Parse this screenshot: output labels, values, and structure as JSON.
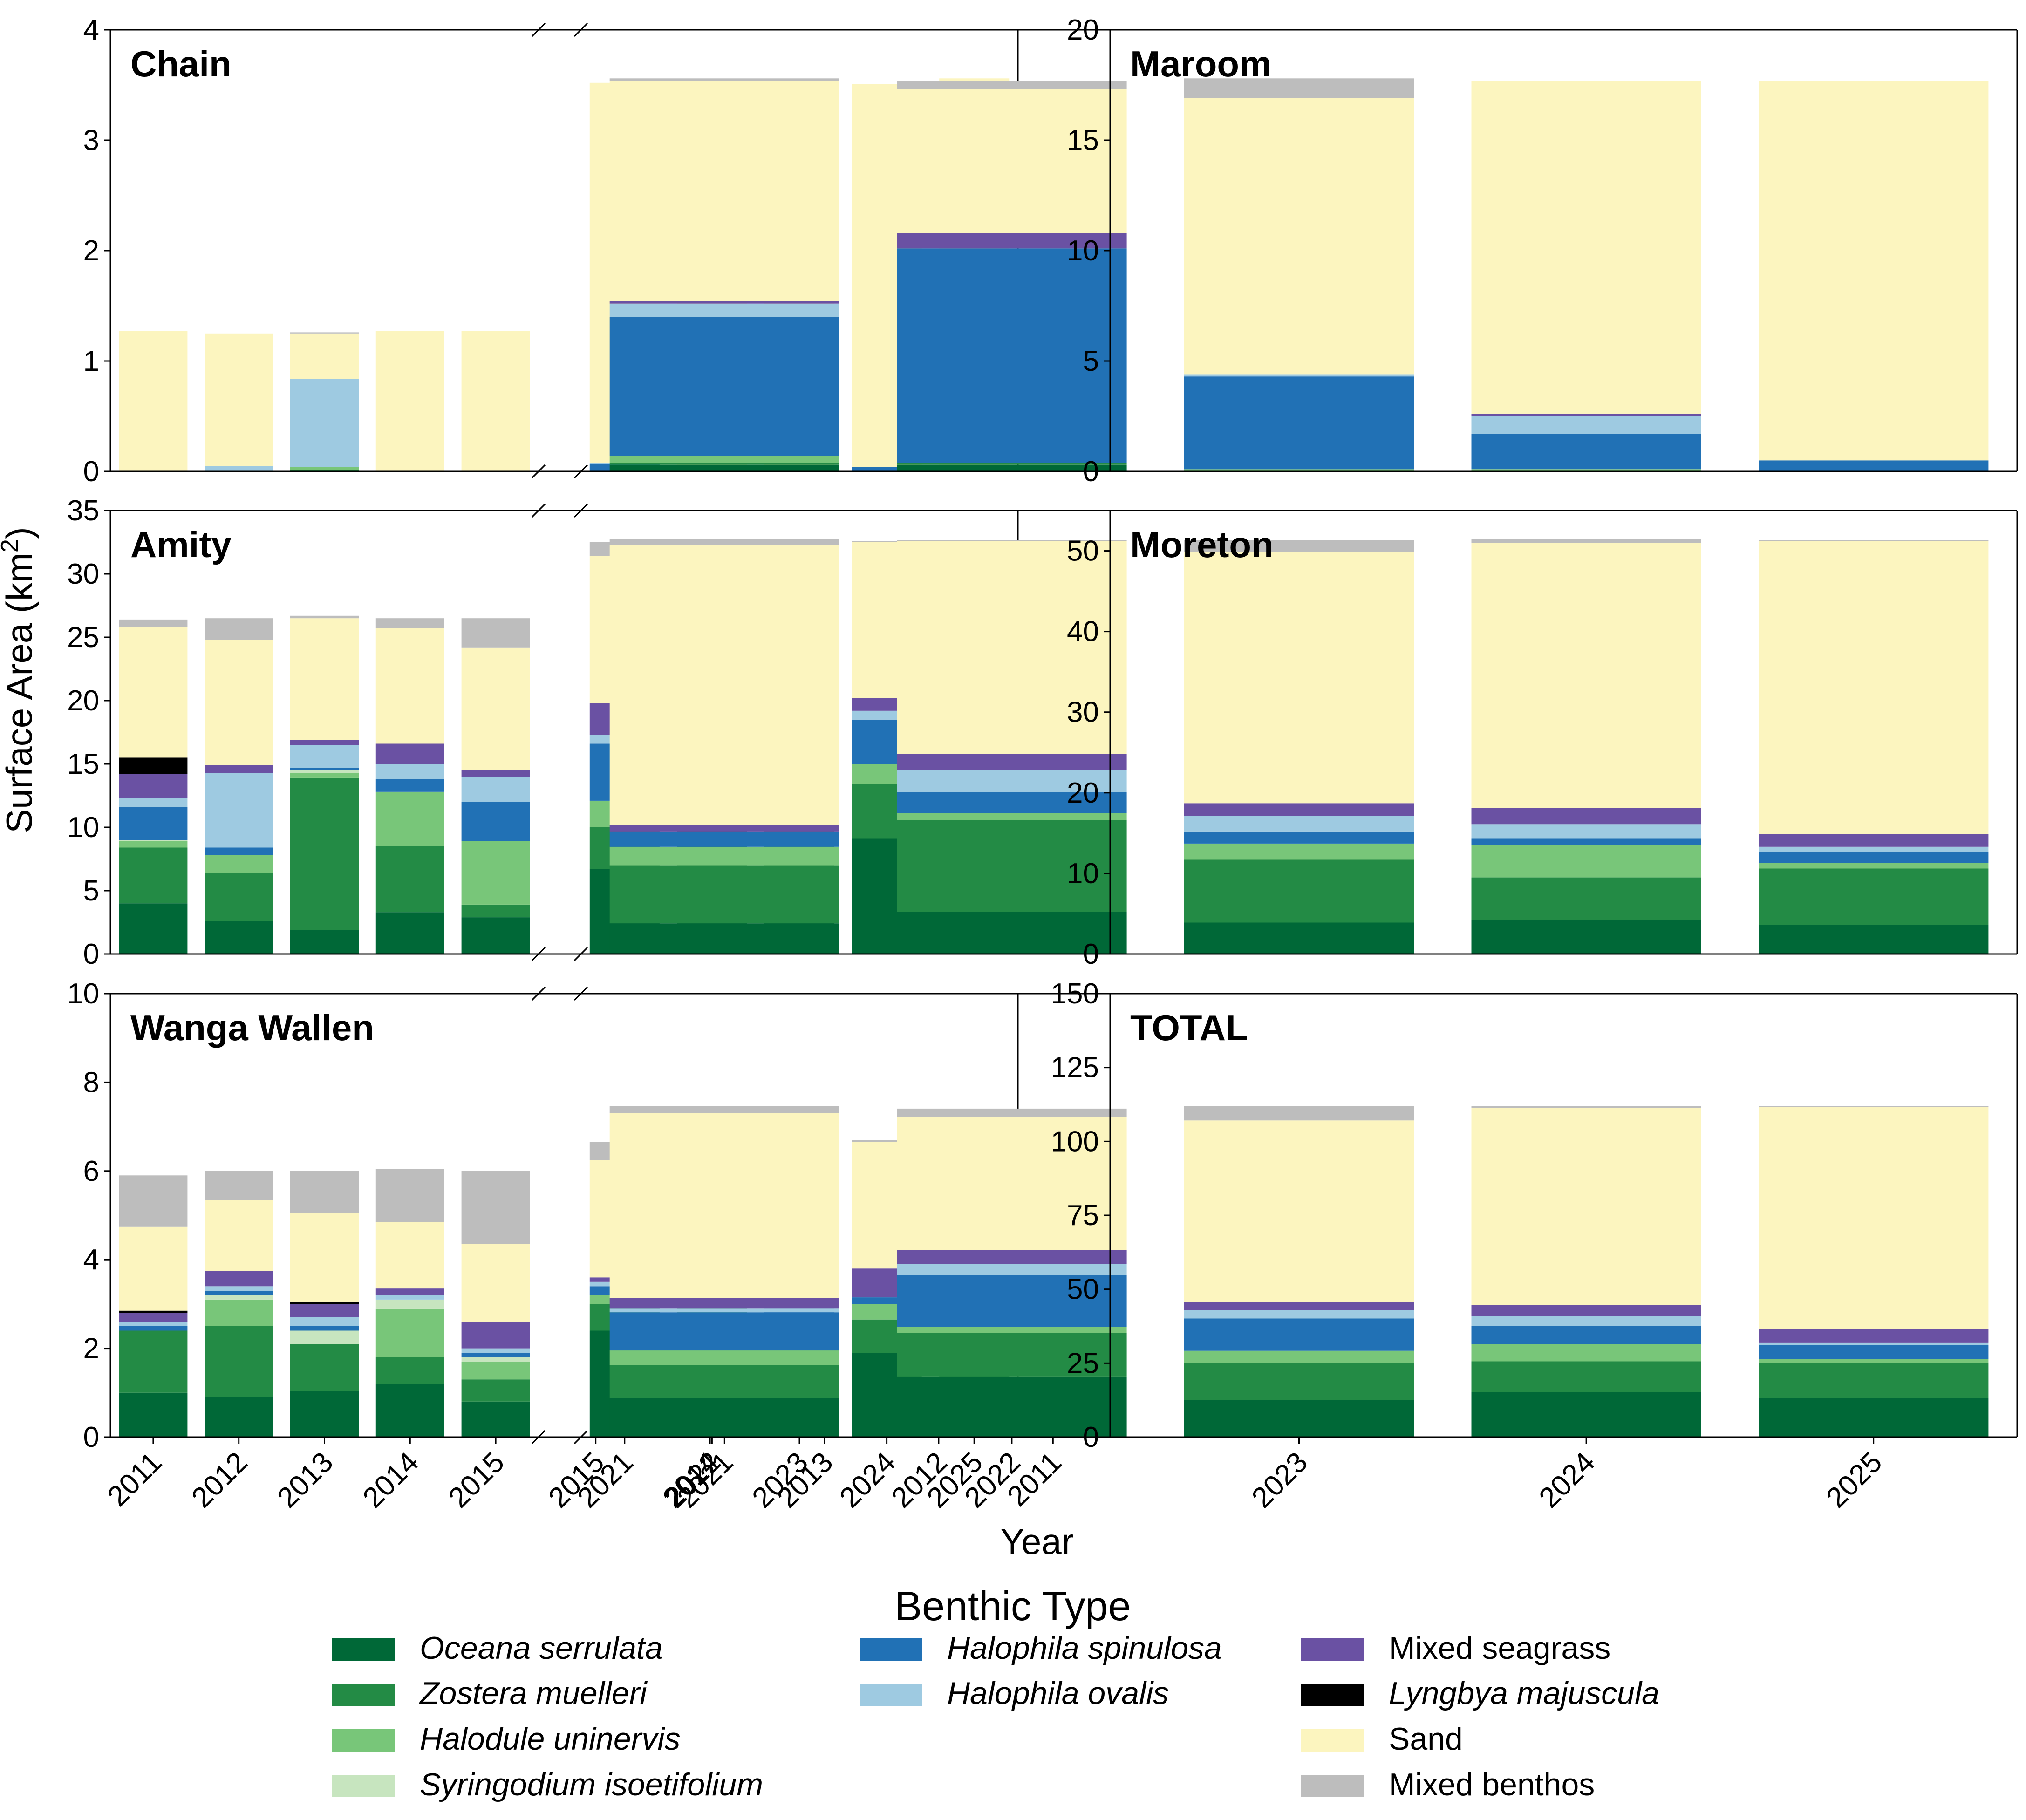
{
  "chart_data": {
    "type": "bar",
    "stacked": true,
    "xlabel": "Year",
    "ylabel": "Surface Area (km",
    "ylabel_superscript": "2",
    "ylabel_suffix": ")",
    "axis_break": true,
    "legend": {
      "title": "Benthic Type",
      "placement": "bottom-center"
    },
    "categories_left": [
      "2011",
      "2012",
      "2013",
      "2014",
      "2015"
    ],
    "categories_right": [
      "2021",
      "2022",
      "2023",
      "2024",
      "2025"
    ],
    "benthic_types": [
      {
        "name": "Oceana serrulata",
        "color": "#006837",
        "italic": true
      },
      {
        "name": "Zostera muelleri",
        "color": "#238b45",
        "italic": true
      },
      {
        "name": "Halodule uninervis",
        "color": "#78c679",
        "italic": true
      },
      {
        "name": "Syringodium isoetifolium",
        "color": "#c7e5bf",
        "italic": true
      },
      {
        "name": "Halophila spinulosa",
        "color": "#2171b5",
        "italic": true
      },
      {
        "name": "Halophila ovalis",
        "color": "#9ecae1",
        "italic": true
      },
      {
        "name": "Mixed seagrass",
        "color": "#6a51a3",
        "italic": false
      },
      {
        "name": "Lyngbya majuscula",
        "color": "#000000",
        "italic": true
      },
      {
        "name": "Sand",
        "color": "#fcf5bf",
        "italic": false
      },
      {
        "name": "Mixed benthos",
        "color": "#bdbdbd",
        "italic": false
      }
    ],
    "panels": [
      {
        "title": "Chain",
        "ylim": [
          0,
          4
        ],
        "yticks": [
          "0",
          "1",
          "2",
          "3",
          "4"
        ],
        "show_xticks": false,
        "values": [
          [
            0,
            0,
            0,
            0,
            0,
            0,
            0,
            0,
            1.27,
            0
          ],
          [
            0,
            0,
            0,
            0,
            0,
            0.05,
            0,
            0,
            1.2,
            0
          ],
          [
            0,
            0.01,
            0.03,
            0,
            0,
            0.8,
            0,
            0,
            0.41,
            0.01
          ],
          [
            0,
            0,
            0,
            0,
            0,
            0,
            0,
            0,
            1.27,
            0
          ],
          [
            0,
            0,
            0,
            0,
            0,
            0,
            0,
            0,
            1.27,
            0
          ],
          [
            0,
            0,
            0,
            0,
            0.07,
            0.01,
            0,
            0,
            3.44,
            0
          ],
          [
            0,
            0,
            0,
            0,
            0.02,
            0.03,
            0,
            0,
            3.48,
            0
          ],
          [
            0,
            0,
            0,
            0,
            0.04,
            0,
            0,
            0,
            3.45,
            0.06
          ],
          [
            0,
            0,
            0,
            0,
            0.04,
            0,
            0,
            0,
            3.47,
            0
          ],
          [
            0,
            0,
            0,
            0,
            0,
            0,
            0,
            0,
            3.56,
            0
          ]
        ]
      },
      {
        "title": "Maroom",
        "ylim": [
          0,
          20
        ],
        "yticks": [
          "0",
          "5",
          "10",
          "15",
          "20"
        ],
        "show_xticks": false,
        "values": [
          [
            0,
            0.6,
            0,
            0,
            2.8,
            1.0,
            0.2,
            0,
            3.9,
            1.0
          ],
          [
            0.5,
            0.2,
            0.1,
            0,
            2.9,
            5.0,
            0.05,
            0,
            0.55,
            0.3
          ],
          [
            1.0,
            4.3,
            0.1,
            0,
            0.4,
            1.0,
            0.05,
            0,
            0.65,
            2.0
          ],
          [
            0,
            0.9,
            0.3,
            0,
            3.4,
            3.7,
            0.5,
            0,
            0.6,
            0.1
          ],
          [
            0.3,
            0,
            1.5,
            0,
            2.8,
            0.1,
            0.2,
            0,
            0.8,
            3.8
          ],
          [
            0.3,
            0.1,
            0.3,
            0,
            6.3,
            0.6,
            0.1,
            0,
            10.0,
            0.1
          ],
          [
            0.3,
            0.1,
            0,
            0,
            9.7,
            0,
            0.7,
            0,
            6.5,
            0.4
          ],
          [
            0,
            0,
            0.1,
            0,
            4.2,
            0.1,
            0,
            0,
            12.5,
            0.9
          ],
          [
            0,
            0,
            0.1,
            0,
            1.6,
            0.8,
            0.1,
            0,
            15.1,
            0
          ],
          [
            0,
            0,
            0,
            0,
            0.5,
            0,
            0,
            0,
            17.2,
            0
          ]
        ]
      },
      {
        "title": "Amity",
        "ylim": [
          0,
          35
        ],
        "yticks": [
          "0",
          "5",
          "10",
          "15",
          "20",
          "25",
          "30",
          "35"
        ],
        "show_xticks": false,
        "values": [
          [
            4.0,
            4.4,
            0.5,
            0.1,
            2.6,
            0.7,
            1.9,
            1.3,
            10.3,
            0.6
          ],
          [
            2.6,
            3.8,
            1.4,
            0,
            0.6,
            5.9,
            0.6,
            0,
            9.9,
            1.7
          ],
          [
            1.9,
            12.0,
            0.4,
            0.2,
            0.2,
            1.8,
            0.4,
            0,
            9.6,
            0.2
          ],
          [
            3.3,
            5.2,
            4.3,
            0,
            1.0,
            1.2,
            1.6,
            0,
            9.1,
            0.8
          ],
          [
            2.9,
            1.0,
            5.0,
            0,
            3.1,
            2.0,
            0.5,
            0,
            9.7,
            2.3
          ],
          [
            6.7,
            3.3,
            2.1,
            0,
            4.5,
            0.7,
            2.5,
            0,
            11.6,
            1.1
          ],
          [
            13.0,
            2.2,
            0.9,
            0,
            5.3,
            0.9,
            0.9,
            0,
            7.0,
            2.3
          ],
          [
            6.8,
            4.0,
            1.9,
            0,
            4.9,
            0.9,
            0.9,
            0,
            11.1,
            1.9
          ],
          [
            9.1,
            4.3,
            1.6,
            0,
            3.5,
            0.7,
            1.0,
            0,
            12.3,
            0.1
          ],
          [
            7.9,
            3.7,
            0.5,
            0,
            2.6,
            0.1,
            2.6,
            0,
            15.0,
            0.2
          ]
        ]
      },
      {
        "title": "Moreton",
        "ylim": [
          0,
          55
        ],
        "yticks": [
          "0",
          "10",
          "20",
          "30",
          "40",
          "50"
        ],
        "show_xticks": false,
        "values": [
          [
            1.5,
            9.6,
            0.6,
            0.5,
            2.1,
            4.0,
            1.0,
            0,
            22.1,
            1.4
          ],
          [
            0,
            10.4,
            4.9,
            3.2,
            0,
            1.1,
            1.7,
            0,
            21.4,
            0
          ],
          [
            0.9,
            8.9,
            0.8,
            2.3,
            1.4,
            14.0,
            0.5,
            0.2,
            12.2,
            1.6
          ],
          [
            1.3,
            5.9,
            12.1,
            0.2,
            0.6,
            1.3,
            2.6,
            0,
            15.9,
            2.5
          ],
          [
            0.3,
            9.9,
            8.0,
            0.1,
            3.6,
            5.2,
            0.8,
            0,
            14.0,
            1.0
          ],
          [
            3.8,
            7.2,
            2.3,
            0,
            1.9,
            0,
            0.8,
            0,
            34.7,
            0.8
          ],
          [
            5.2,
            11.4,
            0.9,
            0,
            2.6,
            2.7,
            2.0,
            0,
            26.4,
            0.1
          ],
          [
            3.9,
            7.8,
            2.0,
            0,
            1.5,
            1.9,
            1.6,
            0,
            31.1,
            1.5
          ],
          [
            4.2,
            5.3,
            4.0,
            0,
            0.8,
            1.8,
            2.0,
            0,
            32.9,
            0.5
          ],
          [
            3.6,
            7.0,
            0.7,
            0,
            1.4,
            0.6,
            1.6,
            0,
            36.3,
            0.1
          ]
        ]
      },
      {
        "title": "Wanga Wallen",
        "ylim": [
          0,
          10
        ],
        "yticks": [
          "0",
          "2",
          "4",
          "6",
          "8",
          "10"
        ],
        "show_xticks": true,
        "values": [
          [
            1.0,
            1.4,
            0,
            0,
            0.1,
            0.1,
            0.2,
            0.05,
            1.9,
            1.15
          ],
          [
            0.9,
            1.6,
            0.6,
            0.1,
            0.1,
            0.1,
            0.35,
            0,
            1.6,
            0.65
          ],
          [
            1.05,
            1.05,
            0,
            0.3,
            0.1,
            0.2,
            0.3,
            0.05,
            2.0,
            0.95
          ],
          [
            1.2,
            0.6,
            1.1,
            0.2,
            0,
            0.1,
            0.15,
            0,
            1.5,
            1.2
          ],
          [
            0.8,
            0.5,
            0.4,
            0.1,
            0.1,
            0.1,
            0.6,
            0,
            1.75,
            1.65
          ],
          [
            2.4,
            0.6,
            0.2,
            0,
            0.2,
            0.1,
            0.1,
            0,
            2.65,
            0.4
          ],
          [
            2.0,
            1.25,
            0,
            0,
            0.05,
            0.1,
            1.5,
            0,
            1.7,
            0.05
          ],
          [
            1.8,
            0.6,
            0.25,
            0,
            0.25,
            0.05,
            0.15,
            0,
            3.2,
            0.35
          ],
          [
            1.9,
            0.75,
            0.35,
            0,
            0.15,
            0,
            0.65,
            0,
            2.85,
            0.05
          ],
          [
            1.7,
            1.25,
            0,
            0,
            0.25,
            0.05,
            0.4,
            0,
            3.0,
            0
          ]
        ]
      },
      {
        "title": "TOTAL",
        "ylim": [
          0,
          150
        ],
        "yticks": [
          "0",
          "25",
          "50",
          "75",
          "100",
          "125",
          "150"
        ],
        "show_xticks": true,
        "values": [
          [
            6.5,
            16.0,
            1.2,
            0.6,
            7.7,
            5.9,
            3.3,
            1.4,
            39.9,
            4.1
          ],
          [
            4.0,
            16.3,
            7.0,
            3.3,
            3.6,
            12.0,
            2.7,
            0,
            34.3,
            2.6
          ],
          [
            4.9,
            26.2,
            1.3,
            2.8,
            2.1,
            17.8,
            1.3,
            0.25,
            25.2,
            4.5
          ],
          [
            5.8,
            12.6,
            17.8,
            0.4,
            5.0,
            6.3,
            4.9,
            0,
            29.0,
            4.6
          ],
          [
            4.3,
            11.4,
            14.9,
            0.2,
            9.6,
            7.4,
            2.1,
            0,
            27.3,
            8.9
          ],
          [
            13.2,
            11.2,
            4.9,
            0,
            12.9,
            1.4,
            3.5,
            0,
            62.4,
            2.4
          ],
          [
            20.5,
            14.8,
            1.9,
            0,
            17.6,
            3.7,
            4.7,
            0,
            45.1,
            2.8
          ],
          [
            12.5,
            12.4,
            4.3,
            0,
            10.9,
            2.9,
            2.7,
            0,
            61.4,
            4.8
          ],
          [
            15.2,
            10.4,
            5.9,
            0,
            6.1,
            3.3,
            3.8,
            0,
            66.6,
            0.7
          ],
          [
            13.2,
            12.0,
            1.2,
            0,
            4.8,
            0.8,
            4.6,
            0,
            75.0,
            0.3
          ]
        ]
      }
    ]
  }
}
